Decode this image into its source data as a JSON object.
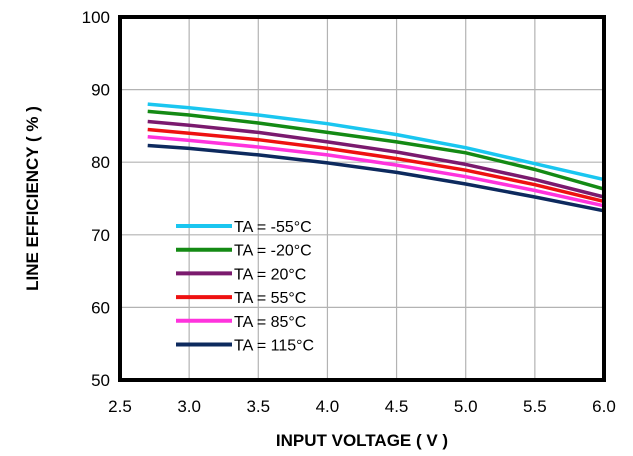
{
  "chart_data": {
    "type": "line",
    "xlabel": "INPUT VOLTAGE ( V )",
    "ylabel": "LINE EFFICIENCY ( % )",
    "xlim": [
      2.5,
      6.0
    ],
    "ylim": [
      50,
      100
    ],
    "xticks": [
      "2.5",
      "3.0",
      "3.5",
      "4.0",
      "4.5",
      "5.0",
      "5.5",
      "6.0"
    ],
    "yticks": [
      "50",
      "60",
      "70",
      "80",
      "90",
      "100"
    ],
    "grid": true,
    "legend_position": "bottom-left",
    "series": [
      {
        "name": "TA = -55°C",
        "color": "#1ac6f0",
        "x": [
          2.7,
          3.0,
          3.5,
          4.0,
          4.5,
          5.0,
          5.5,
          6.0
        ],
        "y": [
          88.0,
          87.5,
          86.5,
          85.3,
          83.8,
          82.0,
          79.8,
          77.6
        ]
      },
      {
        "name": "TA = -20°C",
        "color": "#148a14",
        "x": [
          2.7,
          3.0,
          3.5,
          4.0,
          4.5,
          5.0,
          5.5,
          6.0
        ],
        "y": [
          87.0,
          86.5,
          85.4,
          84.1,
          82.8,
          81.3,
          79.0,
          76.3
        ]
      },
      {
        "name": "TA = 20°C",
        "color": "#7b1a6e",
        "x": [
          2.7,
          3.0,
          3.5,
          4.0,
          4.5,
          5.0,
          5.5,
          6.0
        ],
        "y": [
          85.6,
          85.1,
          84.1,
          82.8,
          81.4,
          79.7,
          77.6,
          75.2
        ]
      },
      {
        "name": "TA = 55°C",
        "color": "#ee1111",
        "x": [
          2.7,
          3.0,
          3.5,
          4.0,
          4.5,
          5.0,
          5.5,
          6.0
        ],
        "y": [
          84.5,
          84.0,
          83.1,
          81.9,
          80.5,
          78.9,
          76.9,
          74.6
        ]
      },
      {
        "name": "TA = 85°C",
        "color": "#ff33dd",
        "x": [
          2.7,
          3.0,
          3.5,
          4.0,
          4.5,
          5.0,
          5.5,
          6.0
        ],
        "y": [
          83.5,
          83.0,
          82.1,
          81.0,
          79.6,
          78.0,
          76.1,
          74.0
        ]
      },
      {
        "name": "TA = 115°C",
        "color": "#0d2a5e",
        "x": [
          2.7,
          3.0,
          3.5,
          4.0,
          4.5,
          5.0,
          5.5,
          6.0
        ],
        "y": [
          82.3,
          81.9,
          81.0,
          79.9,
          78.6,
          77.0,
          75.2,
          73.3
        ]
      }
    ]
  }
}
